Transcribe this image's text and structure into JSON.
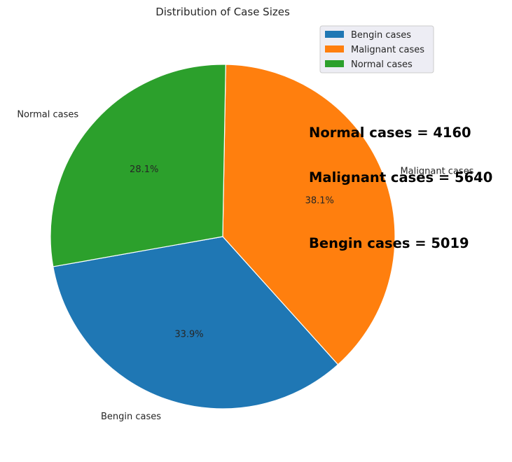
{
  "chart_data": {
    "type": "pie",
    "title": "Distribution of Case Sizes",
    "start_angle_deg": 89,
    "direction": "clockwise",
    "slices": [
      {
        "label": "Malignant cases",
        "value": 5640,
        "pct_label": "38.1%",
        "color": "#ff7f0e"
      },
      {
        "label": "Bengin cases",
        "value": 5019,
        "pct_label": "33.9%",
        "color": "#1f77b4"
      },
      {
        "label": "Normal cases",
        "value": 4160,
        "pct_label": "28.1%",
        "color": "#2ca02c"
      }
    ],
    "legend": {
      "placement": "top-right",
      "entries": [
        "Bengin cases",
        "Malignant cases",
        "Normal cases"
      ],
      "colors": [
        "#1f77b4",
        "#ff7f0e",
        "#2ca02c"
      ]
    },
    "annotations": [
      "Normal cases = 4160",
      "Malignant cases = 5640",
      "Bengin cases = 5019"
    ]
  }
}
